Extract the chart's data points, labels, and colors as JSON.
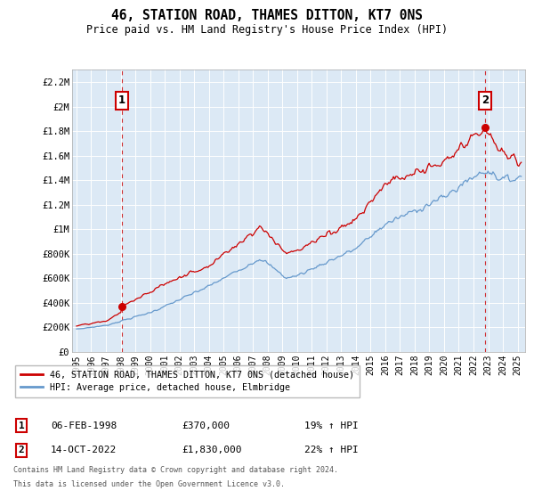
{
  "title": "46, STATION ROAD, THAMES DITTON, KT7 0NS",
  "subtitle": "Price paid vs. HM Land Registry's House Price Index (HPI)",
  "red_label": "46, STATION ROAD, THAMES DITTON, KT7 0NS (detached house)",
  "blue_label": "HPI: Average price, detached house, Elmbridge",
  "annotation1_num": "1",
  "annotation1_date": "06-FEB-1998",
  "annotation1_price": "£370,000",
  "annotation1_hpi": "19% ↑ HPI",
  "annotation2_num": "2",
  "annotation2_date": "14-OCT-2022",
  "annotation2_price": "£1,830,000",
  "annotation2_hpi": "22% ↑ HPI",
  "footer_line1": "Contains HM Land Registry data © Crown copyright and database right 2024.",
  "footer_line2": "This data is licensed under the Open Government Licence v3.0.",
  "yticks": [
    0,
    200000,
    400000,
    600000,
    800000,
    1000000,
    1200000,
    1400000,
    1600000,
    1800000,
    2000000,
    2200000
  ],
  "ytick_labels": [
    "£0",
    "£200K",
    "£400K",
    "£600K",
    "£800K",
    "£1M",
    "£1.2M",
    "£1.4M",
    "£1.6M",
    "£1.8M",
    "£2M",
    "£2.2M"
  ],
  "ylim": [
    0,
    2300000
  ],
  "xlim_start": 1994.7,
  "xlim_end": 2025.5,
  "red_color": "#cc0000",
  "blue_color": "#6699cc",
  "chart_bg": "#dce9f5",
  "background_color": "#ffffff",
  "grid_color": "#ffffff",
  "sale1_date": 1998.09,
  "sale1_price": 370000,
  "sale2_date": 2022.79,
  "sale2_price": 1830000
}
